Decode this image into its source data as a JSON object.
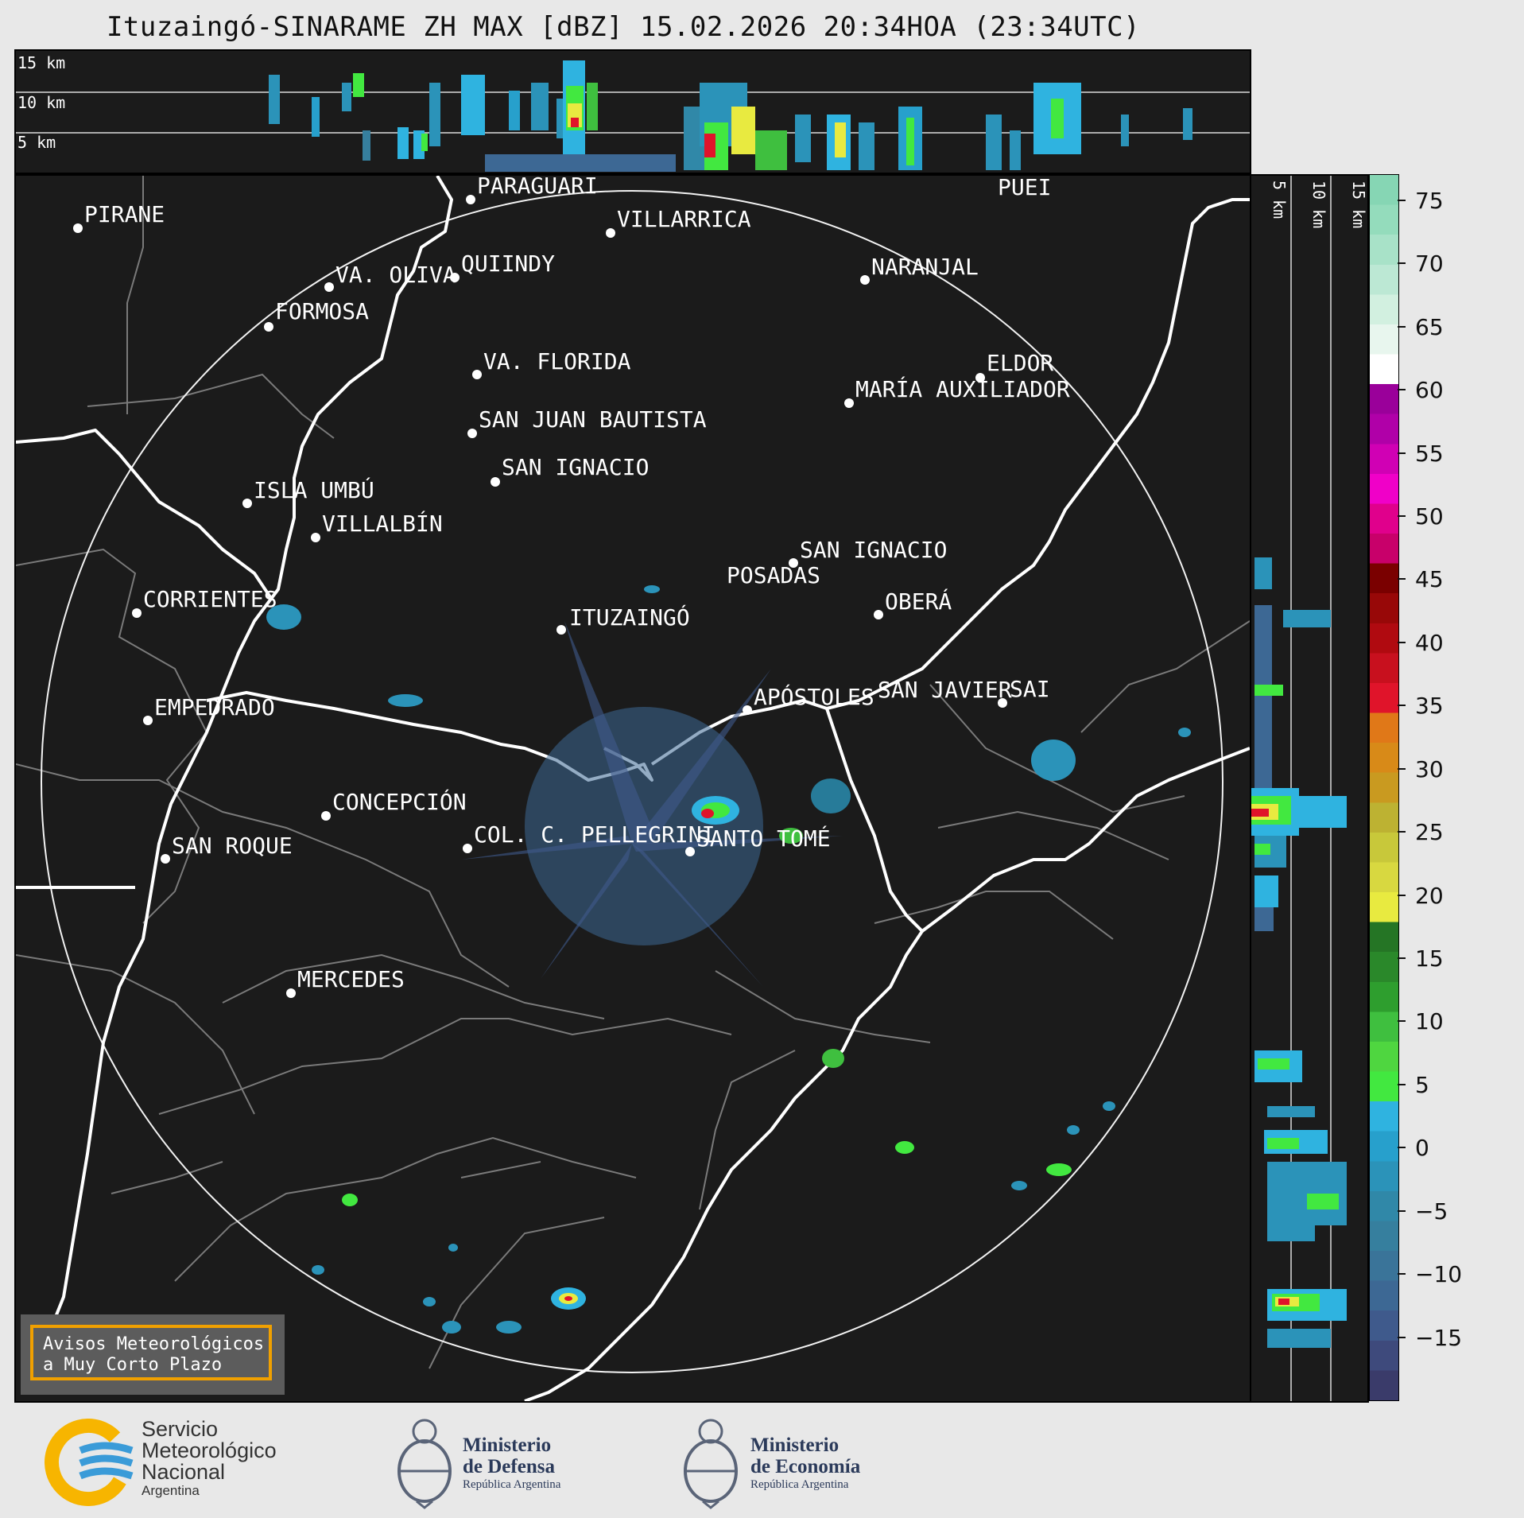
{
  "title": "Ituzaingó-SINARAME ZH MAX [dBZ] 15.02.2026 20:34HOA (23:34UTC)",
  "top_panel": {
    "height_labels": [
      "15 km",
      "10 km",
      "5 km"
    ]
  },
  "side_panel": {
    "height_labels": [
      "5 km",
      "10 km",
      "15 km"
    ]
  },
  "cities": [
    {
      "name": "PIRANE"
    },
    {
      "name": "PARAGUARÍ"
    },
    {
      "name": "VILLARRICA"
    },
    {
      "name": "PUEI"
    },
    {
      "name": "VA. OLIVA"
    },
    {
      "name": "QUIINDY"
    },
    {
      "name": "NARANJAL"
    },
    {
      "name": "FORMOSA"
    },
    {
      "name": "VA. FLORIDA"
    },
    {
      "name": "ELDOR"
    },
    {
      "name": "MARÍA AUXILIADOR"
    },
    {
      "name": "SAN JUAN BAUTISTA"
    },
    {
      "name": "SAN IGNACIO"
    },
    {
      "name": "ISLA UMBÚ"
    },
    {
      "name": "VILLALBÍN"
    },
    {
      "name": "SAN IGNACIO"
    },
    {
      "name": "POSADAS"
    },
    {
      "name": "CORRIENTES"
    },
    {
      "name": "ITUZAINGÓ"
    },
    {
      "name": "OBERÁ"
    },
    {
      "name": "APÓSTOLES"
    },
    {
      "name": "SAN JAVIER"
    },
    {
      "name": "SAI"
    },
    {
      "name": "EMPEDRADO"
    },
    {
      "name": "CONCEPCIÓN"
    },
    {
      "name": "COL. C. PELLEGRINI"
    },
    {
      "name": "SANTO TOMÉ"
    },
    {
      "name": "SAN ROQUE"
    },
    {
      "name": "MERCEDES"
    }
  ],
  "colorbar": {
    "ticks": [
      "75",
      "70",
      "65",
      "60",
      "55",
      "50",
      "45",
      "40",
      "35",
      "30",
      "25",
      "20",
      "15",
      "10",
      "5",
      "0",
      "−5",
      "−10",
      "−15"
    ],
    "colors": [
      "#3a3b6a",
      "#3e4a7c",
      "#3f5a8c",
      "#3d6894",
      "#3a7499",
      "#367f9e",
      "#3088a8",
      "#2b93b9",
      "#27a0cc",
      "#2fb3e0",
      "#42e840",
      "#4fd640",
      "#3fbf3f",
      "#2e9e2e",
      "#2a882a",
      "#257525",
      "#e8ea40",
      "#d8d840",
      "#c8c83a",
      "#bdb232",
      "#c99a20",
      "#d88a18",
      "#e07818",
      "#e0142a",
      "#c8101e",
      "#b00a10",
      "#980808",
      "#7a0000",
      "#c8006a",
      "#e0008c",
      "#f000c8",
      "#d000b4",
      "#b000a8",
      "#9a009a",
      "#ffffff",
      "#e8f6ee",
      "#d2f0e0",
      "#bce8d4",
      "#a8e2c8",
      "#94dcbc",
      "#86d6b4"
    ]
  },
  "notice": {
    "line1": "Avisos Meteorológicos",
    "line2": "a Muy Corto Plazo"
  },
  "footer": {
    "smn_line1": "Servicio",
    "smn_line2": "Meteorológico",
    "smn_line3": "Nacional",
    "smn_line4": "Argentina",
    "defensa_line1": "Ministerio",
    "defensa_line2": "de Defensa",
    "defensa_line3": "República Argentina",
    "economia_line1": "Ministerio",
    "economia_line2": "de Economía",
    "economia_line3": "República Argentina"
  }
}
